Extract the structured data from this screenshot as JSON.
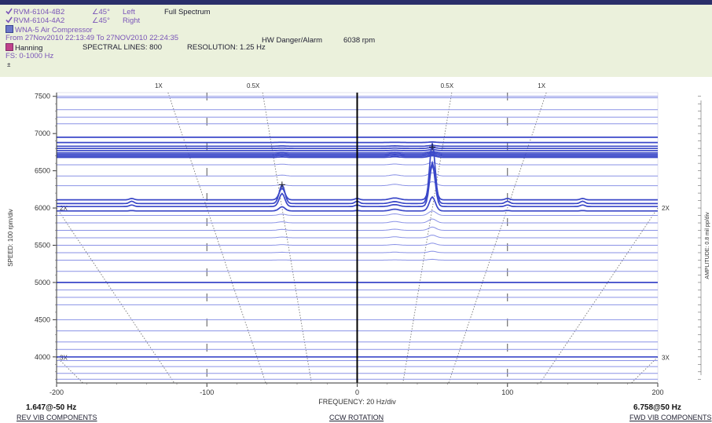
{
  "header": {
    "ch1": {
      "name": "RVM-6104-4B2",
      "angle": "∠45°",
      "side": "Left"
    },
    "ch2": {
      "name": "RVM-6104-4A2",
      "angle": "∠45°",
      "side": "Right"
    },
    "plot_type": "Full Spectrum",
    "machine": "WNA-5  Air Compressor",
    "time_range": "From 27Nov2010 22:13:49 To 27NOV2010 22:24:35",
    "alarm": "HW Danger/Alarm",
    "rpm": "6038 rpm",
    "window": "Hanning",
    "spectral_lines": "SPECTRAL LINES: 800",
    "resolution": "RESOLUTION: 1.25 Hz",
    "fs": "FS: 0-1000 Hz",
    "zoom_mark": "±"
  },
  "footer": {
    "left_value": "1.647@-50 Hz",
    "left_label": "REV VIB COMPONENTS",
    "center_label": "CCW ROTATION",
    "right_value": "6.758@50 Hz",
    "right_label": "FWD VIB COMPONENTS"
  },
  "colors": {
    "trace": "#3a47c8",
    "trace_light": "#8a92e6",
    "header_bg": "#ebf1dc",
    "axis": "#000000"
  },
  "chart_data": {
    "type": "line",
    "subtype": "full-spectrum cascade",
    "xlabel": "FREQUENCY: 20 Hz/div",
    "ylabel": "SPEED: 100 rpm/div",
    "right_label": "AMPLITUDE: 0.8 mil pp/div",
    "xlim": [
      -200,
      200
    ],
    "ylim": [
      3650,
      7550
    ],
    "x_ticks": [
      -200,
      -100,
      0,
      100,
      200
    ],
    "y_ticks": [
      4000,
      4500,
      5000,
      5500,
      6000,
      6500,
      7000,
      7500
    ],
    "order_lines": [
      {
        "label": "1X",
        "order": 1,
        "side": "left",
        "label_pos": "top"
      },
      {
        "label": "0.5X",
        "order": 0.5,
        "side": "left",
        "label_pos": "top"
      },
      {
        "label": "0.5X",
        "order": 0.5,
        "side": "right",
        "label_pos": "top"
      },
      {
        "label": "1X",
        "order": 1,
        "side": "right",
        "label_pos": "top"
      },
      {
        "label": "2X",
        "order": 2,
        "side": "left",
        "label_pos": "left"
      },
      {
        "label": "2X",
        "order": 2,
        "side": "right",
        "label_pos": "right"
      },
      {
        "label": "3X",
        "order": 3,
        "side": "left",
        "label_pos": "left"
      },
      {
        "label": "3X",
        "order": 3,
        "side": "right",
        "label_pos": "right"
      }
    ],
    "order_label_rpm": {
      "2X": 6000,
      "3X": 3990
    },
    "traces_rpm": [
      7500,
      7480,
      7320,
      7220,
      7130,
      6950,
      6880,
      6830,
      6800,
      6770,
      6740,
      6720,
      6700,
      6680,
      6580,
      6430,
      6300,
      6110,
      6060,
      6020,
      5960,
      5900,
      5800,
      5700,
      5600,
      5500,
      5400,
      5300,
      5150,
      5000,
      4900,
      4800,
      4700,
      4500,
      4350,
      4200,
      4100,
      4000,
      3950,
      3870,
      3780,
      3700
    ],
    "dominant_peak": {
      "freq": 50,
      "amplitude": 6.758,
      "units": "mil pp",
      "max_rpm": 6060
    },
    "reverse_peak": {
      "freq": -50,
      "amplitude": 1.647,
      "units": "mil pp",
      "max_rpm": 6060
    }
  }
}
